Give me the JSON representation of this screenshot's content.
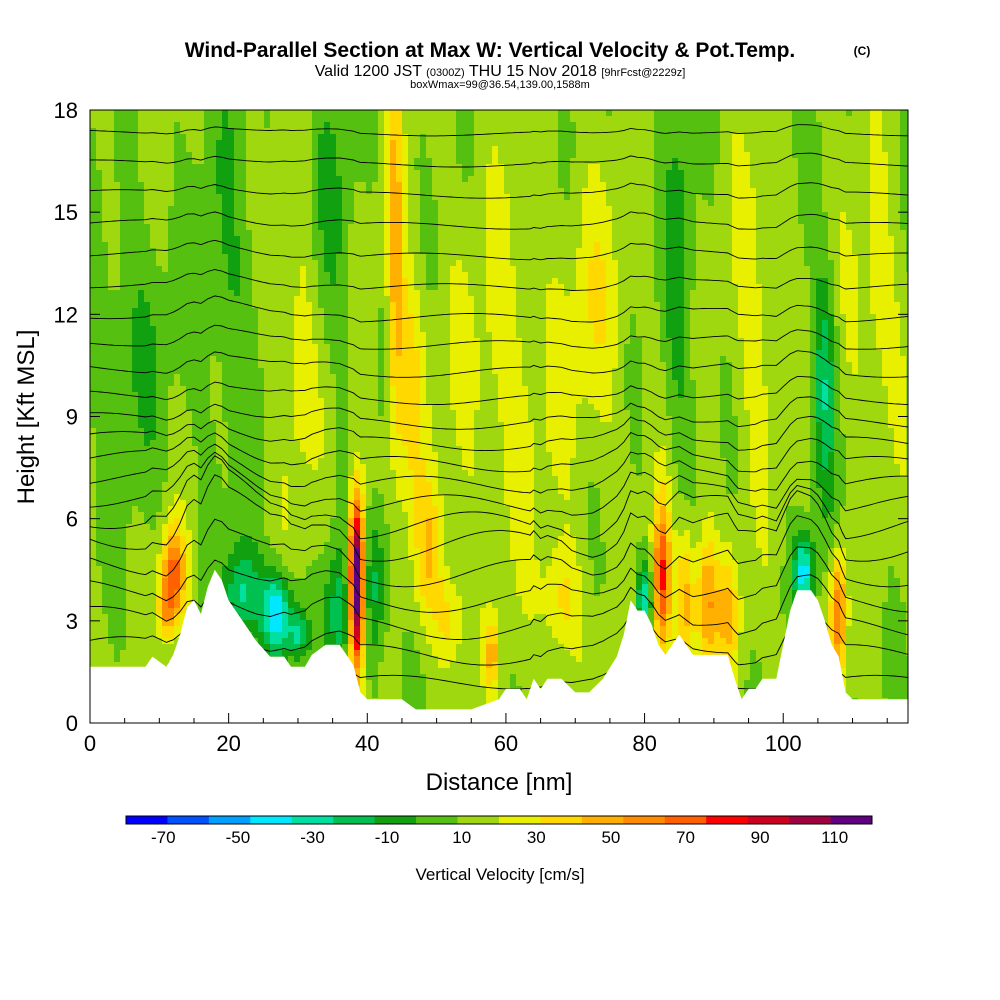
{
  "title": {
    "main": "Wind-Parallel Section at Max W: Vertical Velocity & Pot.Temp.",
    "main_suffix": "(C)",
    "valid_prefix": "Valid 1200 JST",
    "valid_zulu": "(0300Z)",
    "valid_date": "THU 15 Nov 2018",
    "forecast": "[9hrFcst@2229z]",
    "box_info": "boxWmax=99@36.54,139.00,1588m"
  },
  "chart_data": {
    "type": "heatmap",
    "xlabel": "Distance [nm]",
    "ylabel": "Height [Kft MSL]",
    "xlim": [
      0,
      118
    ],
    "ylim": [
      0,
      18
    ],
    "x_ticks": [
      "0",
      "20",
      "40",
      "60",
      "80",
      "100"
    ],
    "x_tick_values": [
      0,
      20,
      40,
      60,
      80,
      100
    ],
    "y_ticks": [
      "0",
      "3",
      "6",
      "9",
      "12",
      "15",
      "18"
    ],
    "y_tick_values": [
      0,
      3,
      6,
      9,
      12,
      15,
      18
    ],
    "colorbar": {
      "label": "Vertical Velocity [cm/s]",
      "min": -80,
      "max": 120,
      "step": 10,
      "tick_labels": [
        "-70",
        "-50",
        "-30",
        "-10",
        "10",
        "30",
        "50",
        "70",
        "90",
        "110"
      ],
      "tick_values": [
        -70,
        -50,
        -30,
        -10,
        10,
        30,
        50,
        70,
        90,
        110
      ],
      "colors": [
        "#0000ff",
        "#0050ff",
        "#00a0ff",
        "#00e8ff",
        "#00e0a0",
        "#00c050",
        "#10a010",
        "#55c010",
        "#a0d810",
        "#e8f000",
        "#ffd800",
        "#ffb000",
        "#ff8c00",
        "#ff6000",
        "#ff0000",
        "#d00020",
        "#a00040",
        "#600080"
      ]
    },
    "terrain_kft": [
      [
        0,
        1.65
      ],
      [
        8,
        1.65
      ],
      [
        9,
        1.95
      ],
      [
        11,
        1.65
      ],
      [
        12,
        2.0
      ],
      [
        13,
        2.6
      ],
      [
        14,
        3.4
      ],
      [
        15,
        3.6
      ],
      [
        16,
        3.2
      ],
      [
        17,
        4.0
      ],
      [
        18,
        4.5
      ],
      [
        19,
        4.2
      ],
      [
        20,
        3.6
      ],
      [
        21,
        3.3
      ],
      [
        22,
        3.0
      ],
      [
        24,
        2.4
      ],
      [
        26,
        1.95
      ],
      [
        28,
        1.95
      ],
      [
        29,
        1.65
      ],
      [
        31,
        1.65
      ],
      [
        32,
        2.0
      ],
      [
        34,
        2.3
      ],
      [
        36,
        2.3
      ],
      [
        37,
        2.0
      ],
      [
        38,
        1.7
      ],
      [
        39,
        0.9
      ],
      [
        40,
        0.7
      ],
      [
        45,
        0.7
      ],
      [
        47,
        0.4
      ],
      [
        55,
        0.4
      ],
      [
        59,
        0.7
      ],
      [
        60,
        1.0
      ],
      [
        62,
        1.0
      ],
      [
        63,
        0.7
      ],
      [
        64,
        1.3
      ],
      [
        65,
        1.0
      ],
      [
        66,
        1.3
      ],
      [
        68,
        1.3
      ],
      [
        70,
        0.9
      ],
      [
        72,
        0.9
      ],
      [
        74,
        1.3
      ],
      [
        76,
        1.95
      ],
      [
        77,
        2.6
      ],
      [
        78,
        3.6
      ],
      [
        79,
        3.3
      ],
      [
        80,
        3.3
      ],
      [
        81,
        2.9
      ],
      [
        82,
        2.3
      ],
      [
        83,
        2.0
      ],
      [
        84,
        2.3
      ],
      [
        85,
        2.6
      ],
      [
        86,
        2.3
      ],
      [
        87,
        2.0
      ],
      [
        92,
        2.0
      ],
      [
        93,
        1.3
      ],
      [
        94,
        0.7
      ],
      [
        95,
        1.0
      ],
      [
        96,
        1.0
      ],
      [
        97,
        1.3
      ],
      [
        99,
        1.3
      ],
      [
        100,
        2.3
      ],
      [
        101,
        3.3
      ],
      [
        102,
        3.9
      ],
      [
        104,
        3.9
      ],
      [
        105,
        3.6
      ],
      [
        106,
        3.0
      ],
      [
        107,
        2.3
      ],
      [
        108,
        1.95
      ],
      [
        109,
        0.9
      ],
      [
        110,
        0.7
      ],
      [
        118,
        0.7
      ]
    ],
    "w_features": [
      {
        "x": 12,
        "y": 4.3,
        "sx": 1.2,
        "sy": 1.0,
        "w": 55
      },
      {
        "x": 11,
        "y": 3.2,
        "sx": 0.8,
        "sy": 0.6,
        "w": 25
      },
      {
        "x": 22,
        "y": 3.8,
        "sx": 1.8,
        "sy": 1.0,
        "w": -35
      },
      {
        "x": 27,
        "y": 3.2,
        "sx": 1.5,
        "sy": 0.9,
        "w": -55
      },
      {
        "x": 30,
        "y": 2.6,
        "sx": 1.0,
        "sy": 0.5,
        "w": -30
      },
      {
        "x": 38.5,
        "y": 4.1,
        "sx": 0.8,
        "sy": 1.8,
        "w": 120
      },
      {
        "x": 36,
        "y": 3.2,
        "sx": 1.5,
        "sy": 1.4,
        "w": -30
      },
      {
        "x": 41,
        "y": 4.0,
        "sx": 1.5,
        "sy": 1.5,
        "w": -28
      },
      {
        "x": 44,
        "y": 14,
        "sx": 0.8,
        "sy": 4.0,
        "w": 30
      },
      {
        "x": 46,
        "y": 10,
        "sx": 1.6,
        "sy": 2.5,
        "w": 22
      },
      {
        "x": 49,
        "y": 5.0,
        "sx": 1.5,
        "sy": 1.5,
        "w": 25
      },
      {
        "x": 52,
        "y": 3.0,
        "sx": 1.5,
        "sy": 1.0,
        "w": 22
      },
      {
        "x": 58,
        "y": 2.0,
        "sx": 0.5,
        "sy": 0.7,
        "w": 35
      },
      {
        "x": 68,
        "y": 3.5,
        "sx": 2.0,
        "sy": 1.2,
        "w": 22
      },
      {
        "x": 60,
        "y": 10,
        "sx": 6.0,
        "sy": 4.0,
        "w": 12
      },
      {
        "x": 82.5,
        "y": 4.2,
        "sx": 0.9,
        "sy": 1.6,
        "w": 60
      },
      {
        "x": 80,
        "y": 3.6,
        "sx": 0.8,
        "sy": 0.8,
        "w": -40
      },
      {
        "x": 86,
        "y": 3.6,
        "sx": 1.0,
        "sy": 1.5,
        "w": 35
      },
      {
        "x": 89,
        "y": 3.5,
        "sx": 1.0,
        "sy": 1.5,
        "w": 40
      },
      {
        "x": 92,
        "y": 3.2,
        "sx": 1.2,
        "sy": 1.2,
        "w": 28
      },
      {
        "x": 85,
        "y": 13,
        "sx": 1.5,
        "sy": 3.5,
        "w": -18
      },
      {
        "x": 103,
        "y": 4.4,
        "sx": 1.0,
        "sy": 0.8,
        "w": -45
      },
      {
        "x": 106,
        "y": 10,
        "sx": 1.2,
        "sy": 2.5,
        "w": -30
      },
      {
        "x": 108,
        "y": 3.2,
        "sx": 0.8,
        "sy": 1.3,
        "w": 50
      },
      {
        "x": 113,
        "y": 12,
        "sx": 3.0,
        "sy": 3.0,
        "w": 14
      },
      {
        "x": 6,
        "y": 11,
        "sx": 4.0,
        "sy": 3.0,
        "w": -12
      },
      {
        "x": 20,
        "y": 13,
        "sx": 3.0,
        "sy": 4.0,
        "w": -12
      },
      {
        "x": 30,
        "y": 11,
        "sx": 2.0,
        "sy": 3.5,
        "w": 14
      },
      {
        "x": 35,
        "y": 15,
        "sx": 2.5,
        "sy": 3.0,
        "w": -12
      },
      {
        "x": 73,
        "y": 12,
        "sx": 3.0,
        "sy": 3.0,
        "w": 14
      },
      {
        "x": 96,
        "y": 12,
        "sx": 2.5,
        "sy": 4.0,
        "w": 12
      }
    ],
    "theta_contours": [
      {
        "y0": 1.2,
        "amp": 0.4
      },
      {
        "y0": 2.0,
        "amp": 0.6
      },
      {
        "y0": 2.8,
        "amp": 0.7
      },
      {
        "y0": 3.6,
        "amp": 0.7
      },
      {
        "y0": 4.4,
        "amp": 0.8
      },
      {
        "y0": 5.2,
        "amp": 0.9
      },
      {
        "y0": 5.8,
        "amp": 0.8
      },
      {
        "y0": 6.4,
        "amp": 0.6
      },
      {
        "y0": 7.0,
        "amp": 0.5
      },
      {
        "y0": 7.6,
        "amp": 0.45
      },
      {
        "y0": 8.2,
        "amp": 0.4
      },
      {
        "y0": 8.8,
        "amp": 0.35
      },
      {
        "y0": 9.5,
        "amp": 0.3
      },
      {
        "y0": 10.3,
        "amp": 0.3
      },
      {
        "y0": 11.1,
        "amp": 0.25
      },
      {
        "y0": 11.9,
        "amp": 0.25
      },
      {
        "y0": 12.8,
        "amp": 0.2
      },
      {
        "y0": 13.7,
        "amp": 0.2
      },
      {
        "y0": 14.6,
        "amp": 0.2
      },
      {
        "y0": 15.5,
        "amp": 0.18
      },
      {
        "y0": 16.4,
        "amp": 0.15
      },
      {
        "y0": 17.3,
        "amp": 0.12
      }
    ]
  }
}
